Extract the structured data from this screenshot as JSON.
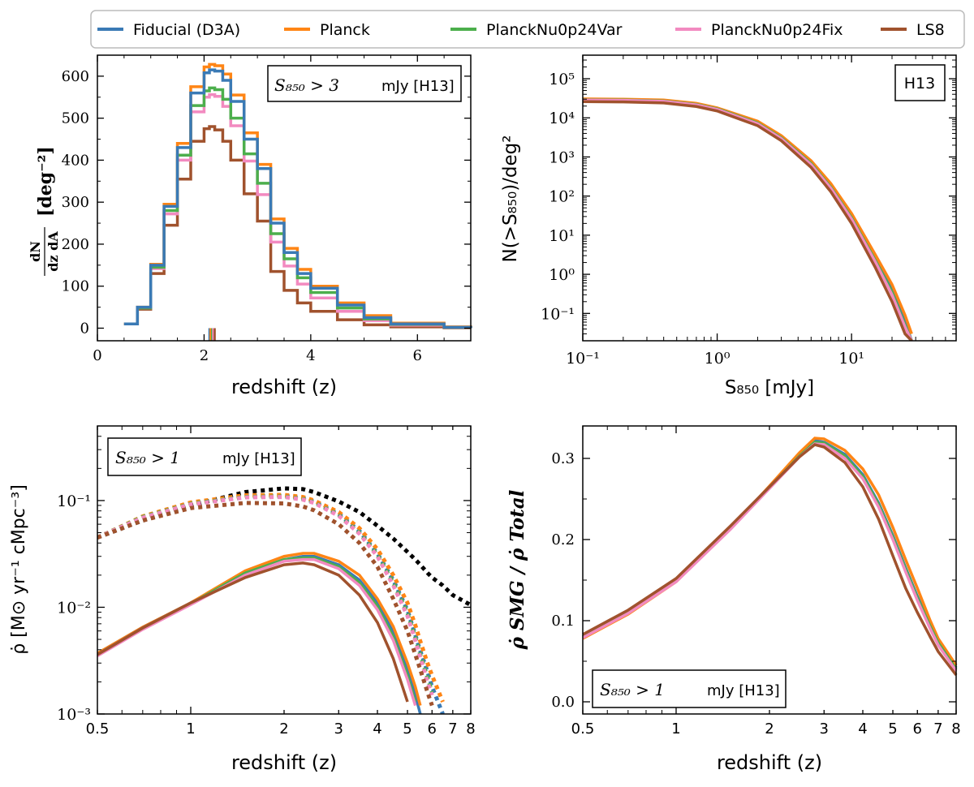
{
  "legend": {
    "entries": [
      {
        "name": "Fiducial (D3A)",
        "color": "#3a7ab5"
      },
      {
        "name": "Planck",
        "color": "#ff8515"
      },
      {
        "name": "PlanckNu0p24Var",
        "color": "#4caf4c"
      },
      {
        "name": "PlanckNu0p24Fix",
        "color": "#f28ac0"
      },
      {
        "name": "LS8",
        "color": "#a0522d"
      }
    ]
  },
  "panels": {
    "a": {
      "annotation_cut": "S₈₅₀ > 3",
      "annotation_unit": "mJy [H13]",
      "ylabel_top": "dN",
      "ylabel_bottom": "dz dA",
      "ylabel_unit": "[deg⁻²]",
      "xlabel": "redshift (z)",
      "yticks": [
        "0",
        "100",
        "200",
        "300",
        "400",
        "500",
        "600"
      ],
      "xticks": [
        "0",
        "2",
        "4",
        "6"
      ]
    },
    "b": {
      "annotation": "H13",
      "ylabel": "N(>S₈₅₀)/deg²",
      "xlabel": "S₈₅₀ [mJy]",
      "yticks": [
        "10⁻¹",
        "10⁰",
        "10¹",
        "10²",
        "10³",
        "10⁴",
        "10⁵"
      ],
      "xticks": [
        "10⁻¹",
        "10⁰",
        "10¹"
      ]
    },
    "c": {
      "annotation_cut": "S₈₅₀ > 1",
      "annotation_unit": "mJy [H13]",
      "ylabel": "ρ̇ [M⊙ yr⁻¹ cMpc⁻³]",
      "xlabel": "redshift (z)",
      "yticks": [
        "10⁻³",
        "10⁻²",
        "10⁻¹"
      ],
      "xticks": [
        "0.5",
        "1",
        "2",
        "3",
        "4",
        "5",
        "6",
        "7",
        "8"
      ]
    },
    "d": {
      "annotation_cut": "S₈₅₀ > 1",
      "annotation_unit": "mJy [H13]",
      "ylabel": "ρ̇ SMG / ρ̇ Total",
      "xlabel": "redshift (z)",
      "yticks": [
        "0.0",
        "0.1",
        "0.2",
        "0.3"
      ],
      "xticks": [
        "0.5",
        "1",
        "2",
        "3",
        "4",
        "5",
        "6",
        "7",
        "8"
      ]
    }
  },
  "chart_data": [
    {
      "type": "line",
      "subtype": "step-histogram",
      "title": "S850 > 3 mJy [H13]",
      "xlabel": "redshift (z)",
      "ylabel": "dN/dz dA [deg^-2]",
      "xlim": [
        0,
        7
      ],
      "ylim": [
        -30,
        650
      ],
      "x": [
        0.5,
        0.75,
        1.0,
        1.25,
        1.5,
        1.75,
        2.0,
        2.1,
        2.2,
        2.35,
        2.5,
        2.75,
        3.0,
        3.25,
        3.5,
        3.75,
        4.0,
        4.5,
        5.0,
        5.5,
        6.5,
        7.0
      ],
      "series": [
        {
          "name": "Fiducial (D3A)",
          "values": [
            10,
            50,
            150,
            290,
            430,
            560,
            608,
            615,
            612,
            590,
            540,
            450,
            380,
            250,
            180,
            130,
            95,
            55,
            25,
            10,
            2,
            0
          ]
        },
        {
          "name": "Planck",
          "values": [
            10,
            50,
            152,
            295,
            440,
            575,
            622,
            628,
            625,
            605,
            555,
            465,
            390,
            260,
            190,
            140,
            100,
            60,
            30,
            12,
            3,
            0
          ]
        },
        {
          "name": "PlanckNu0p24Var",
          "values": [
            10,
            48,
            145,
            280,
            412,
            530,
            565,
            572,
            568,
            545,
            500,
            415,
            345,
            225,
            165,
            120,
            85,
            48,
            22,
            9,
            2,
            0
          ]
        },
        {
          "name": "PlanckNu0p24Fix",
          "values": [
            10,
            48,
            142,
            272,
            400,
            515,
            550,
            556,
            552,
            528,
            482,
            398,
            318,
            205,
            148,
            105,
            72,
            40,
            18,
            7,
            2,
            0
          ]
        },
        {
          "name": "LS8",
          "values": [
            10,
            45,
            130,
            245,
            355,
            445,
            475,
            480,
            472,
            445,
            400,
            320,
            255,
            135,
            90,
            60,
            40,
            20,
            8,
            3,
            1,
            0
          ]
        }
      ],
      "median_markers": [
        2.1,
        2.12,
        2.15,
        2.17,
        2.2
      ]
    },
    {
      "type": "line",
      "title": "H13",
      "xlabel": "S850 [mJy]",
      "ylabel": "N(>S850)/deg^2",
      "xscale": "log",
      "yscale": "log",
      "xlim": [
        0.1,
        60
      ],
      "ylim": [
        0.02,
        400000
      ],
      "x": [
        0.1,
        0.2,
        0.4,
        0.7,
        1.0,
        2.0,
        3.0,
        5.0,
        7.0,
        10.0,
        15.0,
        20.0,
        25.0,
        28.0
      ],
      "series": [
        {
          "name": "Fiducial (D3A)",
          "values": [
            29000,
            28500,
            27000,
            22000,
            17000,
            7500,
            3200,
            700,
            180,
            30,
            2.5,
            0.4,
            0.06,
            0.02
          ]
        },
        {
          "name": "Planck",
          "values": [
            30500,
            30000,
            28500,
            23500,
            18000,
            8200,
            3500,
            800,
            210,
            36,
            3.2,
            0.55,
            0.09,
            0.03
          ]
        },
        {
          "name": "PlanckNu0p24Var",
          "values": [
            29000,
            28500,
            27000,
            22000,
            17000,
            7400,
            3100,
            680,
            170,
            28,
            2.3,
            0.35,
            0.05,
            0.02
          ]
        },
        {
          "name": "PlanckNu0p24Fix",
          "values": [
            28500,
            28000,
            26500,
            21500,
            16500,
            7100,
            2950,
            640,
            160,
            26,
            2.1,
            0.3,
            0.045,
            0.02
          ]
        },
        {
          "name": "LS8",
          "values": [
            26000,
            25500,
            24000,
            19500,
            15000,
            6300,
            2600,
            540,
            130,
            20,
            1.5,
            0.2,
            0.03,
            0.02
          ]
        }
      ]
    },
    {
      "type": "line",
      "title": "S850 > 1 mJy [H13]",
      "xlabel": "redshift (z)",
      "ylabel": "rho_dot [Msun yr^-1 cMpc^-3]",
      "xscale": "log",
      "yscale": "log",
      "xlim": [
        0.5,
        8
      ],
      "ylim": [
        0.001,
        0.5
      ],
      "x": [
        0.5,
        0.7,
        1.0,
        1.5,
        2.0,
        2.3,
        2.5,
        3.0,
        3.5,
        4.0,
        4.5,
        5.0,
        5.3,
        5.5,
        5.8,
        6.0,
        6.5,
        7.0,
        8.0
      ],
      "total_sfrd": {
        "name": "Total (dotted black)",
        "values": [
          0.045,
          0.065,
          0.09,
          0.12,
          0.13,
          0.128,
          0.12,
          0.098,
          0.078,
          0.058,
          0.044,
          0.033,
          0.028,
          0.025,
          0.021,
          0.019,
          0.016,
          0.013,
          0.0105
        ]
      },
      "series": [
        {
          "name": "Fiducial (D3A)",
          "values": [
            0.0037,
            0.0065,
            0.011,
            0.021,
            0.028,
            0.03,
            0.03,
            0.025,
            0.018,
            0.011,
            0.0058,
            0.0026,
            0.0015,
            0.001,
            null,
            null,
            null,
            null,
            null
          ],
          "total_values": [
            0.045,
            0.07,
            0.094,
            0.11,
            0.111,
            0.105,
            0.098,
            0.075,
            0.052,
            0.032,
            0.018,
            0.0094,
            0.0055,
            0.0039,
            0.0025,
            0.0018,
            0.001,
            null,
            null
          ]
        },
        {
          "name": "Planck",
          "values": [
            0.0037,
            0.0065,
            0.011,
            0.022,
            0.03,
            0.032,
            0.032,
            0.027,
            0.02,
            0.012,
            0.0066,
            0.003,
            0.0018,
            0.0012,
            null,
            null,
            null,
            null,
            null
          ],
          "total_values": [
            0.045,
            0.071,
            0.096,
            0.112,
            0.113,
            0.108,
            0.1,
            0.078,
            0.055,
            0.035,
            0.02,
            0.011,
            0.0068,
            0.0048,
            0.003,
            0.0023,
            0.0013,
            null,
            null
          ]
        },
        {
          "name": "PlanckNu0p24Var",
          "values": [
            0.0036,
            0.0063,
            0.0108,
            0.021,
            0.028,
            0.029,
            0.029,
            0.024,
            0.017,
            0.0102,
            0.0053,
            0.0023,
            0.0013,
            null,
            null,
            null,
            null,
            null,
            null
          ],
          "total_values": [
            0.045,
            0.07,
            0.093,
            0.108,
            0.109,
            0.103,
            0.096,
            0.073,
            0.05,
            0.031,
            0.017,
            0.0088,
            0.0052,
            0.0036,
            0.0022,
            0.0016,
            null,
            null,
            null
          ]
        },
        {
          "name": "PlanckNu0p24Fix",
          "values": [
            0.0035,
            0.0062,
            0.0106,
            0.02,
            0.027,
            0.028,
            0.028,
            0.023,
            0.016,
            0.0095,
            0.0049,
            0.0021,
            0.0012,
            null,
            null,
            null,
            null,
            null,
            null
          ],
          "total_values": [
            0.045,
            0.069,
            0.092,
            0.107,
            0.108,
            0.102,
            0.095,
            0.072,
            0.049,
            0.03,
            0.016,
            0.0083,
            0.0049,
            0.0034,
            0.002,
            0.0015,
            null,
            null,
            null
          ]
        },
        {
          "name": "LS8",
          "values": [
            0.0036,
            0.0064,
            0.011,
            0.019,
            0.025,
            0.026,
            0.025,
            0.02,
            0.013,
            0.0072,
            0.0033,
            0.0013,
            null,
            null,
            null,
            null,
            null,
            null,
            null
          ],
          "total_values": [
            0.045,
            0.065,
            0.085,
            0.095,
            0.094,
            0.088,
            0.081,
            0.06,
            0.04,
            0.024,
            0.012,
            0.006,
            0.0036,
            0.0026,
            0.0016,
            0.0012,
            null,
            null,
            null
          ]
        }
      ]
    },
    {
      "type": "line",
      "title": "S850 > 1 mJy [H13]",
      "xlabel": "redshift (z)",
      "ylabel": "rho_dot_SMG / rho_dot_Total",
      "xscale": "log",
      "xlim": [
        0.5,
        8
      ],
      "ylim": [
        -0.015,
        0.34
      ],
      "x": [
        0.5,
        0.7,
        1.0,
        1.5,
        2.0,
        2.5,
        2.8,
        3.0,
        3.5,
        4.0,
        4.5,
        5.0,
        5.5,
        6.0,
        6.6,
        7.0,
        8.0
      ],
      "series": [
        {
          "name": "Fiducial (D3A)",
          "values": [
            0.08,
            0.11,
            0.15,
            0.215,
            0.265,
            0.305,
            0.322,
            0.32,
            0.305,
            0.28,
            0.245,
            0.205,
            0.165,
            0.13,
            0.095,
            0.075,
            0.042
          ]
        },
        {
          "name": "Planck",
          "values": [
            0.078,
            0.108,
            0.148,
            0.214,
            0.266,
            0.307,
            0.325,
            0.324,
            0.31,
            0.287,
            0.255,
            0.215,
            0.175,
            0.14,
            0.1,
            0.078,
            0.045
          ]
        },
        {
          "name": "PlanckNu0p24Var",
          "values": [
            0.08,
            0.11,
            0.149,
            0.214,
            0.264,
            0.303,
            0.32,
            0.319,
            0.303,
            0.278,
            0.243,
            0.203,
            0.163,
            0.128,
            0.093,
            0.073,
            0.04
          ]
        },
        {
          "name": "PlanckNu0p24Fix",
          "values": [
            0.079,
            0.109,
            0.148,
            0.213,
            0.263,
            0.302,
            0.318,
            0.317,
            0.3,
            0.275,
            0.24,
            0.2,
            0.16,
            0.125,
            0.09,
            0.07,
            0.038
          ]
        },
        {
          "name": "LS8",
          "values": [
            0.083,
            0.113,
            0.152,
            0.217,
            0.265,
            0.302,
            0.317,
            0.314,
            0.295,
            0.265,
            0.225,
            0.18,
            0.14,
            0.11,
            0.08,
            0.062,
            0.033
          ]
        }
      ]
    }
  ]
}
